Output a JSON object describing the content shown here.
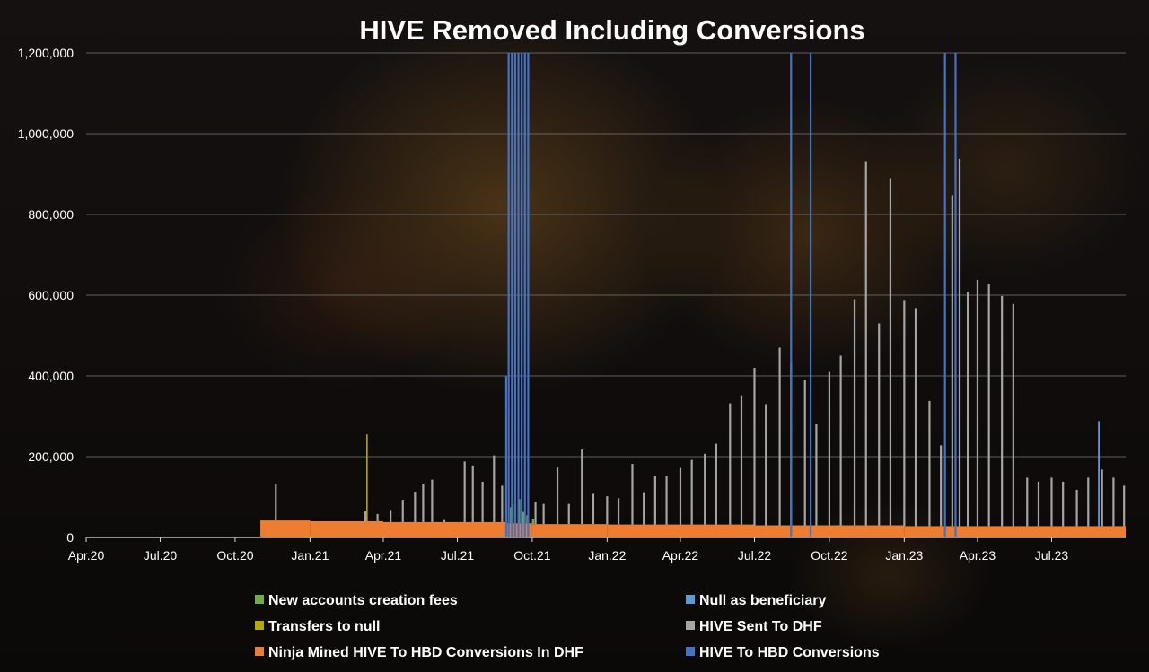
{
  "chart_data": {
    "type": "bar",
    "title": "HIVE Removed Including Conversions",
    "xlabel": "",
    "ylabel": "",
    "x_range": [
      "2020-04-01",
      "2023-09-30"
    ],
    "ylim": [
      0,
      1200000
    ],
    "y_ticks": [
      {
        "value": 0,
        "label": "0"
      },
      {
        "value": 200000,
        "label": "200,000"
      },
      {
        "value": 400000,
        "label": "400,000"
      },
      {
        "value": 600000,
        "label": "600,000"
      },
      {
        "value": 800000,
        "label": "800,000"
      },
      {
        "value": 1000000,
        "label": "1,000,000"
      },
      {
        "value": 1200000,
        "label": "1,200,000"
      }
    ],
    "x_ticks": [
      {
        "date": "2020-04-01",
        "label": "Apr.20"
      },
      {
        "date": "2020-07-01",
        "label": "Jul.20"
      },
      {
        "date": "2020-10-01",
        "label": "Oct.20"
      },
      {
        "date": "2021-01-01",
        "label": "Jan.21"
      },
      {
        "date": "2021-04-01",
        "label": "Apr.21"
      },
      {
        "date": "2021-07-01",
        "label": "Jul.21"
      },
      {
        "date": "2021-10-01",
        "label": "Oct.21"
      },
      {
        "date": "2022-01-01",
        "label": "Jan.22"
      },
      {
        "date": "2022-04-01",
        "label": "Apr.22"
      },
      {
        "date": "2022-07-01",
        "label": "Jul.22"
      },
      {
        "date": "2022-10-01",
        "label": "Oct.22"
      },
      {
        "date": "2023-01-01",
        "label": "Jan.23"
      },
      {
        "date": "2023-04-01",
        "label": "Apr.23"
      },
      {
        "date": "2023-07-01",
        "label": "Jul.23"
      }
    ],
    "grid": true,
    "legend_position": "bottom",
    "stacked": true,
    "series": [
      {
        "key": "new_accounts",
        "name": "New accounts creation fees",
        "color": "#70ad47",
        "points": [
          [
            "2021-09-05",
            40000
          ],
          [
            "2021-09-10",
            48000
          ],
          [
            "2021-09-15",
            60000
          ],
          [
            "2021-09-20",
            28000
          ],
          [
            "2021-09-25",
            20000
          ],
          [
            "2021-10-02",
            12000
          ]
        ]
      },
      {
        "key": "null_beneficiary",
        "name": "Null as beneficiary",
        "color": "#5b9bd5",
        "points": [
          [
            "2023-08-28",
            260000
          ]
        ]
      },
      {
        "key": "transfers_null",
        "name": "Transfers to null",
        "color": "#b5a800",
        "points": [
          [
            "2021-03-12",
            215000
          ]
        ]
      },
      {
        "key": "hive_dhf",
        "name": "HIVE Sent To DHF",
        "color": "#a5a5a5",
        "points": [
          [
            "2020-11-20",
            90000
          ],
          [
            "2021-03-10",
            25000
          ],
          [
            "2021-03-25",
            18000
          ],
          [
            "2021-04-10",
            30000
          ],
          [
            "2021-04-25",
            55000
          ],
          [
            "2021-05-10",
            75000
          ],
          [
            "2021-05-20",
            95000
          ],
          [
            "2021-05-31",
            105000
          ],
          [
            "2021-06-15",
            5000
          ],
          [
            "2021-07-10",
            150000
          ],
          [
            "2021-07-20",
            140000
          ],
          [
            "2021-08-01",
            100000
          ],
          [
            "2021-08-15",
            165000
          ],
          [
            "2021-08-25",
            90000
          ],
          [
            "2021-10-05",
            55000
          ],
          [
            "2021-10-15",
            50000
          ],
          [
            "2021-11-01",
            140000
          ],
          [
            "2021-11-15",
            50000
          ],
          [
            "2021-12-01",
            185000
          ],
          [
            "2021-12-15",
            75000
          ],
          [
            "2022-01-01",
            70000
          ],
          [
            "2022-01-15",
            65000
          ],
          [
            "2022-02-01",
            150000
          ],
          [
            "2022-02-15",
            80000
          ],
          [
            "2022-03-01",
            120000
          ],
          [
            "2022-03-15",
            120000
          ],
          [
            "2022-04-01",
            140000
          ],
          [
            "2022-04-15",
            160000
          ],
          [
            "2022-05-01",
            175000
          ],
          [
            "2022-05-15",
            200000
          ],
          [
            "2022-06-01",
            300000
          ],
          [
            "2022-06-15",
            320000
          ],
          [
            "2022-07-01",
            390000
          ],
          [
            "2022-07-15",
            300000
          ],
          [
            "2022-08-01",
            440000
          ],
          [
            "2022-08-15",
            400000
          ],
          [
            "2022-09-01",
            360000
          ],
          [
            "2022-09-15",
            250000
          ],
          [
            "2022-10-01",
            380000
          ],
          [
            "2022-10-15",
            420000
          ],
          [
            "2022-11-01",
            560000
          ],
          [
            "2022-11-15",
            900000
          ],
          [
            "2022-12-01",
            500000
          ],
          [
            "2022-12-15",
            860000
          ],
          [
            "2023-01-01",
            560000
          ],
          [
            "2023-01-15",
            540000
          ],
          [
            "2023-02-01",
            310000
          ],
          [
            "2023-02-15",
            200000
          ],
          [
            "2023-03-01",
            820000
          ],
          [
            "2023-03-10",
            910000
          ],
          [
            "2023-03-20",
            580000
          ],
          [
            "2023-04-01",
            610000
          ],
          [
            "2023-04-15",
            600000
          ],
          [
            "2023-05-01",
            570000
          ],
          [
            "2023-05-15",
            550000
          ],
          [
            "2023-06-01",
            120000
          ],
          [
            "2023-06-15",
            110000
          ],
          [
            "2023-07-01",
            120000
          ],
          [
            "2023-07-15",
            110000
          ],
          [
            "2023-08-01",
            90000
          ],
          [
            "2023-08-15",
            120000
          ],
          [
            "2023-09-01",
            140000
          ],
          [
            "2023-09-15",
            120000
          ],
          [
            "2023-09-28",
            100000
          ]
        ]
      },
      {
        "key": "ninja",
        "name": "Ninja Mined HIVE To HBD Conversions In DHF",
        "color": "#ed7d31",
        "points": [
          [
            "2020-11-01",
            42000
          ],
          [
            "2021-01-01",
            40000
          ],
          [
            "2021-04-01",
            38000
          ],
          [
            "2021-08-31",
            35000
          ],
          [
            "2021-10-01",
            33000
          ],
          [
            "2022-01-01",
            32000
          ],
          [
            "2022-07-01",
            30000
          ],
          [
            "2023-01-01",
            28000
          ],
          [
            "2023-09-30",
            25000
          ]
        ]
      },
      {
        "key": "hbd_conversions",
        "name": "HIVE To HBD Conversions",
        "color": "#4472c4",
        "points": [
          [
            "2021-08-30",
            400000
          ],
          [
            "2021-09-02",
            1200000
          ],
          [
            "2021-09-06",
            1200000
          ],
          [
            "2021-09-10",
            1200000
          ],
          [
            "2021-09-14",
            1200000
          ],
          [
            "2021-09-18",
            1200000
          ],
          [
            "2021-09-22",
            1200000
          ],
          [
            "2021-09-26",
            1200000
          ],
          [
            "2022-08-15",
            1200000
          ],
          [
            "2022-09-08",
            1200000
          ],
          [
            "2023-02-20",
            1200000
          ],
          [
            "2023-03-05",
            1200000
          ]
        ]
      }
    ]
  }
}
